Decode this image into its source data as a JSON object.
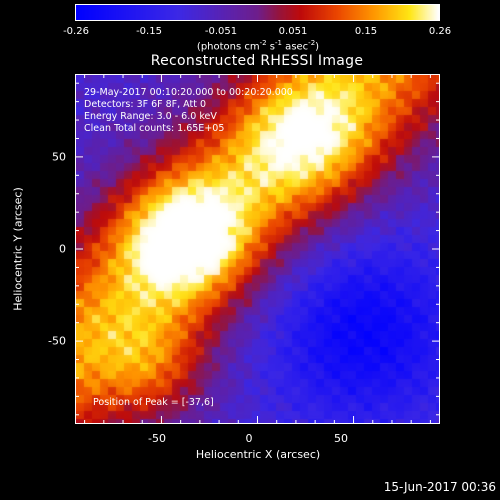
{
  "chart_data": {
    "type": "heatmap",
    "title": "Reconstructed RHESSI Image",
    "xlabel": "Heliocentric X (arcsec)",
    "ylabel": "Heliocentric Y (arcsec)",
    "xlim": [
      -95,
      95
    ],
    "ylim": [
      -95,
      95
    ],
    "x_ticks": [
      -50,
      0,
      50
    ],
    "y_ticks": [
      -50,
      0,
      50
    ],
    "colorbar": {
      "min": -0.26,
      "max": 0.26,
      "ticks": [
        "-0.26",
        "-0.15",
        "-0.051",
        "0.051",
        "0.15",
        "0.26"
      ],
      "units_prefix": "(photons cm",
      "units_exp1": "-2",
      "units_mid1": " s",
      "units_exp2": "-1",
      "units_mid2": " asec",
      "units_exp3": "-2",
      "units_suffix": ")"
    },
    "info_lines": [
      "29-May-2017 00:10:20.000 to 00:20:20.000",
      "Detectors: 3F 6F 8F, Att 0",
      "Energy Range: 3.0 - 6.0 keV",
      "Clean    Total counts: 1.65E+05"
    ],
    "peak_label": "Position of Peak = [-37,6]",
    "peak_position": [
      -37,
      6
    ]
  },
  "timestamp": "15-Jun-2017 00:36"
}
